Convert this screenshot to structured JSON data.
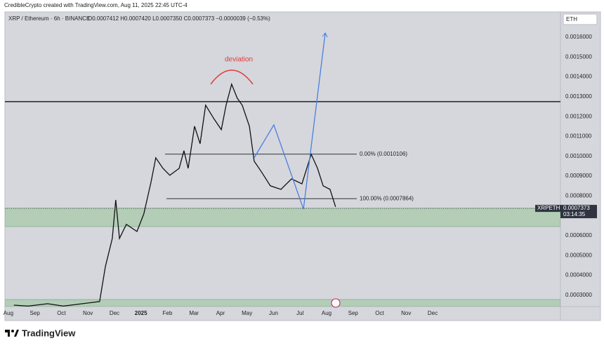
{
  "header": "CredibleCrypto created with TradingView.com, Aug 11, 2025 22:45 UTC-4",
  "footer_logo": "TradingView",
  "chart_data": {
    "type": "line",
    "title": "XRP / Ethereum · 6h · BINANCE",
    "ohlc": "O0.0007412 H0.0007420 L0.0007350 C0.0007373 −0.0000039 (−0.53%)",
    "currency": "ETH",
    "symbol": "XRPETH",
    "last_price": {
      "value": 0.0007373,
      "label": "0.0007373"
    },
    "countdown": "03:14:35",
    "annotation": "deviation",
    "color": "#111111",
    "x": [
      0.21,
      0.74,
      1.48,
      2.07,
      3.44,
      3.66,
      3.92,
      4.05,
      4.19,
      4.45,
      4.85,
      5.11,
      5.38,
      5.56,
      5.83,
      6.09,
      6.44,
      6.62,
      6.78,
      7.02,
      7.23,
      7.44,
      7.76,
      8.03,
      8.21,
      8.42,
      8.63,
      8.82,
      9.09,
      9.27,
      9.54,
      9.88,
      10.28,
      10.68,
      11.07,
      11.42,
      11.66,
      11.87,
      12.13,
      12.34
    ],
    "values": [
      0.00025,
      0.000245,
      0.000257,
      0.000245,
      0.000268,
      0.000445,
      0.000586,
      0.00078,
      0.000586,
      0.000657,
      0.000621,
      0.00071,
      0.000869,
      0.000992,
      0.000939,
      0.000904,
      0.000939,
      0.001028,
      0.000939,
      0.001151,
      0.001063,
      0.001257,
      0.001187,
      0.001134,
      0.001257,
      0.001363,
      0.001293,
      0.001257,
      0.001151,
      0.000975,
      0.000922,
      0.000851,
      0.000833,
      0.000886,
      0.000861,
      0.00101,
      0.000939,
      0.000851,
      0.000833,
      0.000745
    ],
    "projection": {
      "color": "#4a7fe0",
      "x": [
        9.27,
        10.01,
        11.13,
        11.95
      ],
      "values": [
        0.000992,
        0.001158,
        0.000734,
        0.001621
      ]
    },
    "resistance": [
      0.001275
    ],
    "fib_levels": [
      {
        "value": 0.0010106,
        "label": "0.00% (0.0010106)"
      },
      {
        "value": 0.0007864,
        "label": "100.00% (0.0007864)"
      }
    ],
    "zones": [
      [
        0.000646,
        0.000738
      ],
      [
        0.000243,
        0.000278
      ]
    ],
    "xlim": [
      -0.13,
      20.82
    ],
    "ylim": [
      0.000243,
      0.001727
    ],
    "xticks": [
      {
        "value": 0,
        "label": "Aug"
      },
      {
        "value": 1,
        "label": "Sep"
      },
      {
        "value": 2,
        "label": "Oct"
      },
      {
        "value": 3,
        "label": "Nov"
      },
      {
        "value": 4,
        "label": "Dec"
      },
      {
        "value": 5,
        "label": "2025"
      },
      {
        "value": 6,
        "label": "Feb"
      },
      {
        "value": 7,
        "label": "Mar"
      },
      {
        "value": 8,
        "label": "Apr"
      },
      {
        "value": 9,
        "label": "May"
      },
      {
        "value": 10,
        "label": "Jun"
      },
      {
        "value": 11,
        "label": "Jul"
      },
      {
        "value": 12,
        "label": "Aug"
      },
      {
        "value": 13,
        "label": "Sep"
      },
      {
        "value": 14,
        "label": "Oct"
      },
      {
        "value": 15,
        "label": "Nov"
      },
      {
        "value": 16,
        "label": "Dec"
      }
    ],
    "yticks": [
      {
        "value": 0.0016,
        "label": "0.0016000"
      },
      {
        "value": 0.0015,
        "label": "0.0015000"
      },
      {
        "value": 0.0014,
        "label": "0.0014000"
      },
      {
        "value": 0.0013,
        "label": "0.0013000"
      },
      {
        "value": 0.0012,
        "label": "0.0012000"
      },
      {
        "value": 0.0011,
        "label": "0.0011000"
      },
      {
        "value": 0.001,
        "label": "0.0010000"
      },
      {
        "value": 0.0009,
        "label": "0.0009000"
      },
      {
        "value": 0.0008,
        "label": "0.0008000"
      },
      {
        "value": 0.0006,
        "label": "0.0006000"
      },
      {
        "value": 0.0005,
        "label": "0.0005000"
      },
      {
        "value": 0.0004,
        "label": "0.0004000"
      },
      {
        "value": 0.0003,
        "label": "0.0003000"
      }
    ]
  }
}
